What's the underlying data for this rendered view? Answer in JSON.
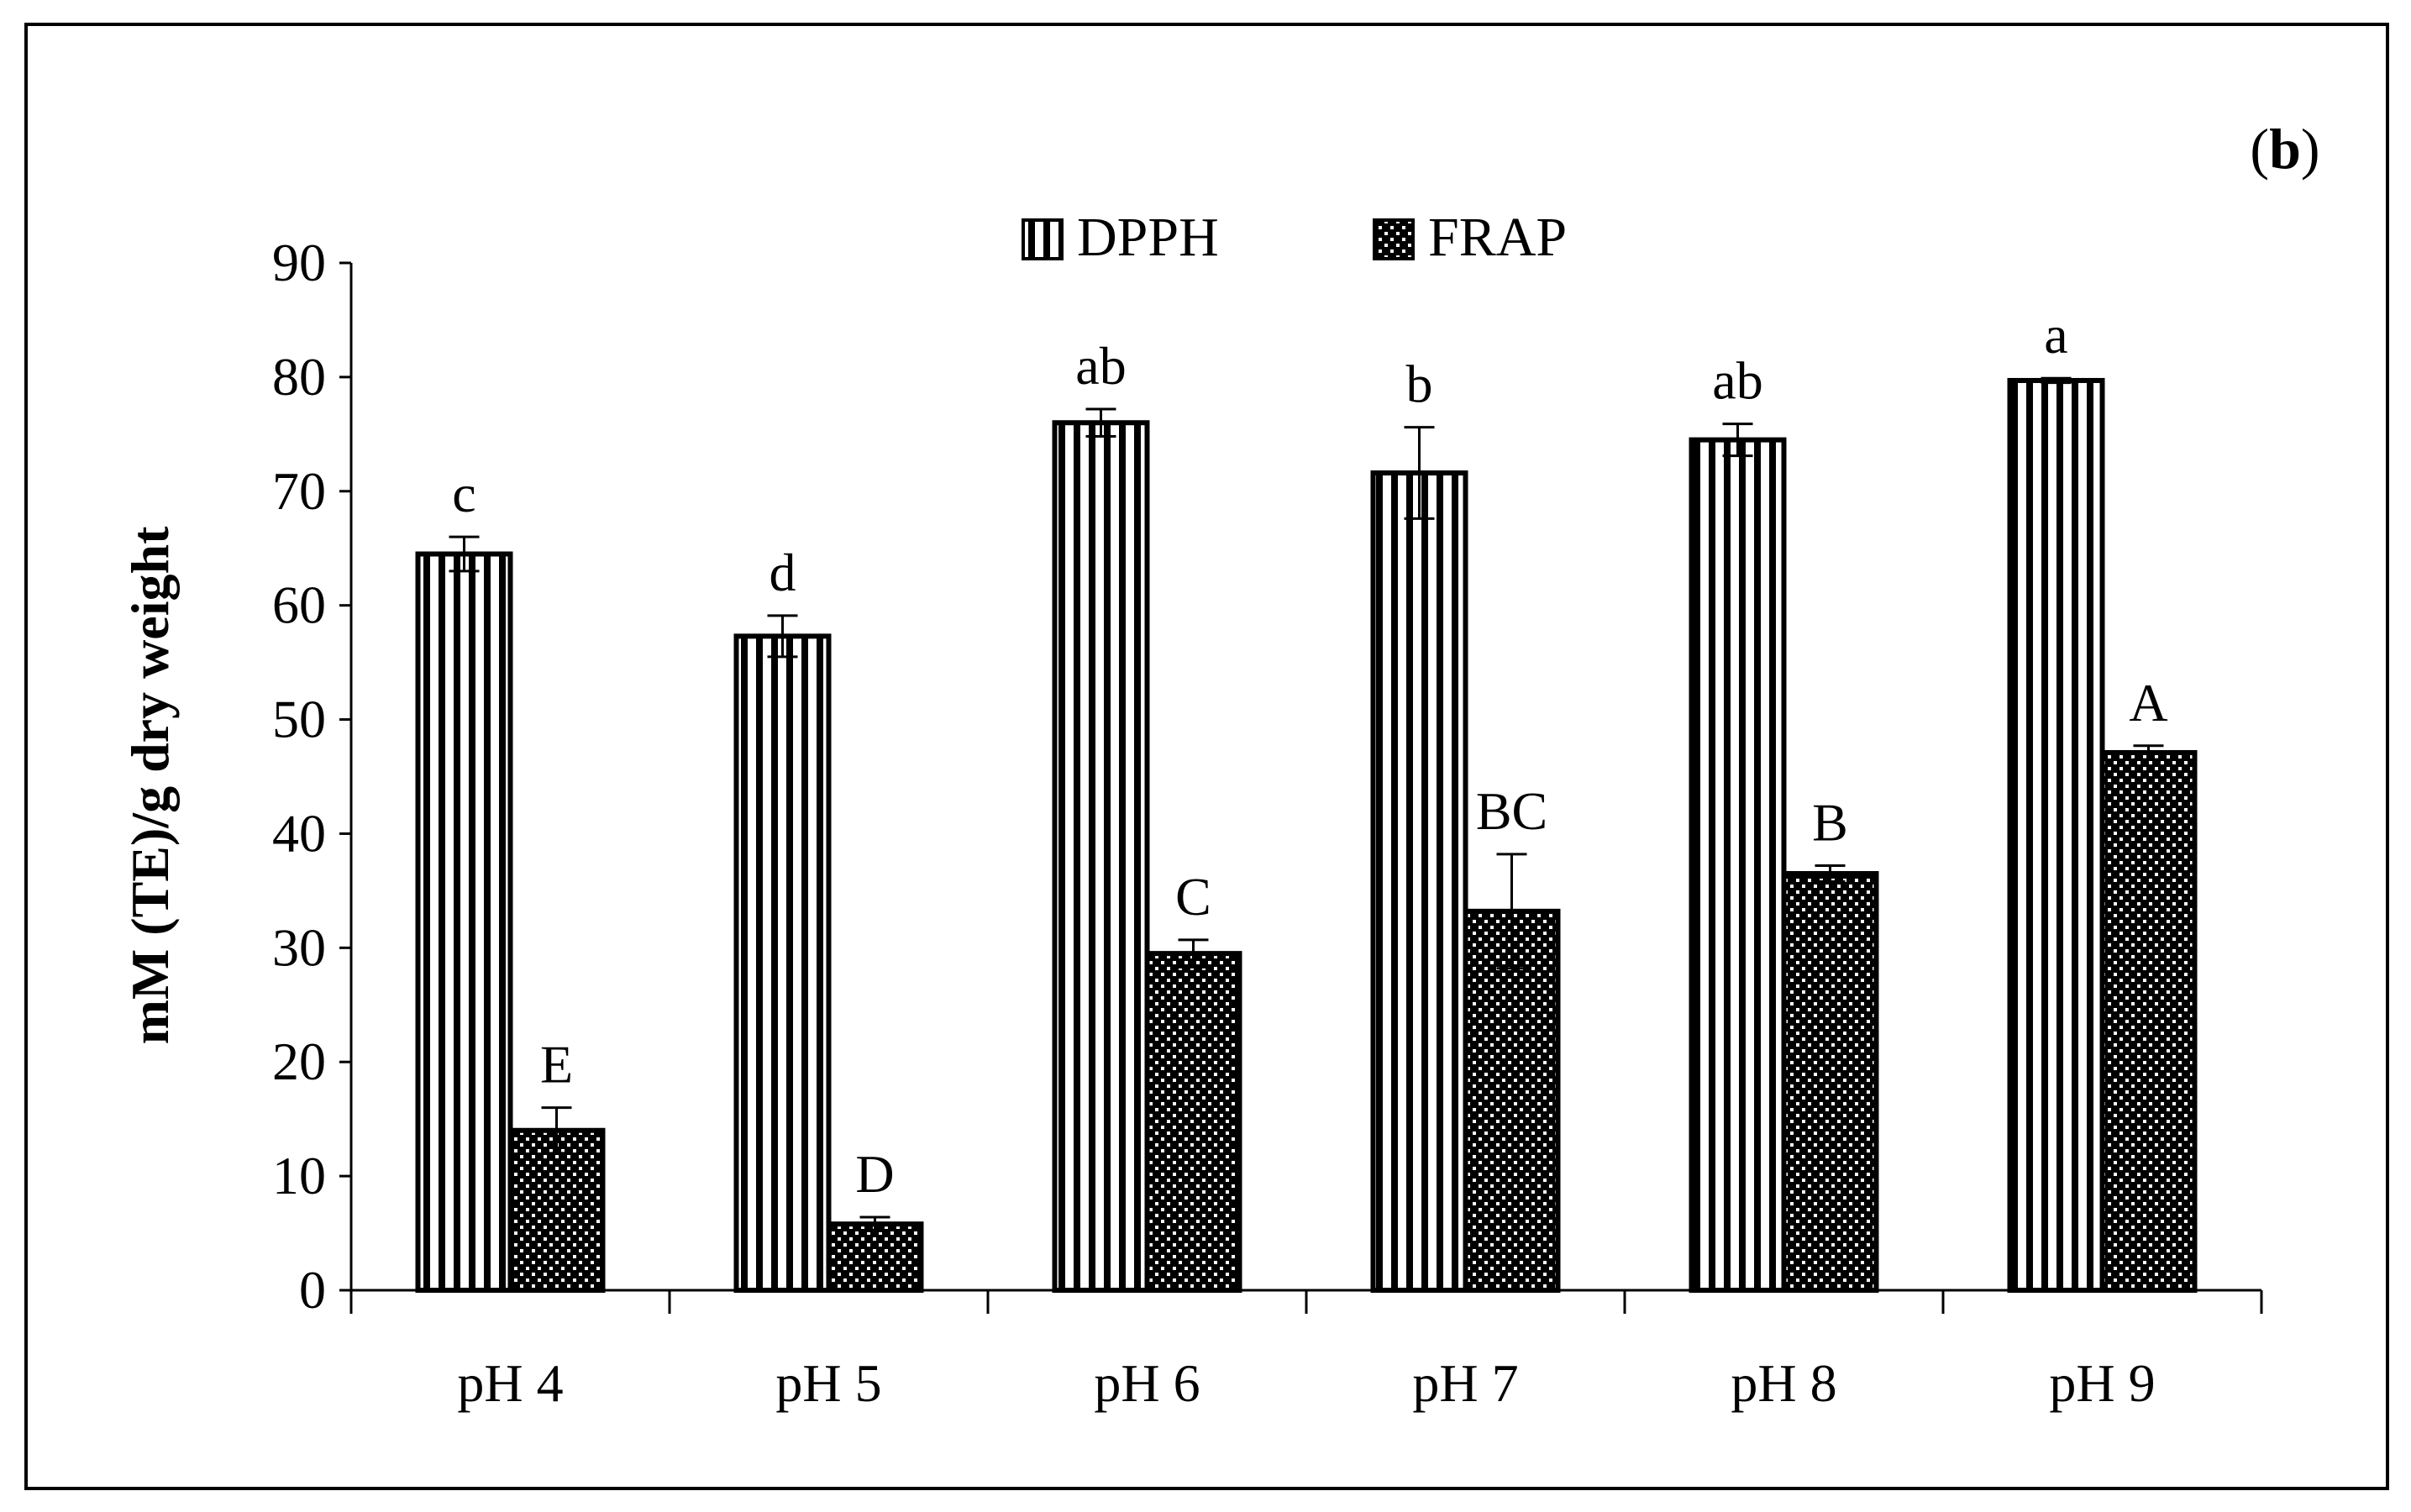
{
  "chart_data": {
    "type": "bar",
    "panel_label": "(b)",
    "ylabel": "mM (TE)/g dry weight",
    "xlabel": "",
    "ylim": [
      0,
      90
    ],
    "yticks": [
      0,
      10,
      20,
      30,
      40,
      50,
      60,
      70,
      80,
      90
    ],
    "categories": [
      "pH 4",
      "pH 5",
      "pH 6",
      "pH 7",
      "pH 8",
      "pH 9"
    ],
    "series": [
      {
        "name": "DPPH",
        "pattern": "vertical-stripes",
        "values": [
          64.5,
          57.3,
          76.0,
          71.6,
          74.5,
          79.7
        ],
        "errors": [
          1.5,
          1.8,
          1.2,
          4.0,
          1.4,
          0.2
        ],
        "letters": [
          "c",
          "d",
          "ab",
          "b",
          "ab",
          "a"
        ]
      },
      {
        "name": "FRAP",
        "pattern": "dots",
        "values": [
          14.0,
          5.8,
          29.5,
          33.2,
          36.5,
          47.1
        ],
        "errors": [
          2.0,
          0.6,
          1.2,
          5.0,
          0.7,
          0.6
        ],
        "letters": [
          "E",
          "D",
          "C",
          "BC",
          "B",
          "A"
        ]
      }
    ],
    "legend_position": "top-center",
    "grid": false
  }
}
